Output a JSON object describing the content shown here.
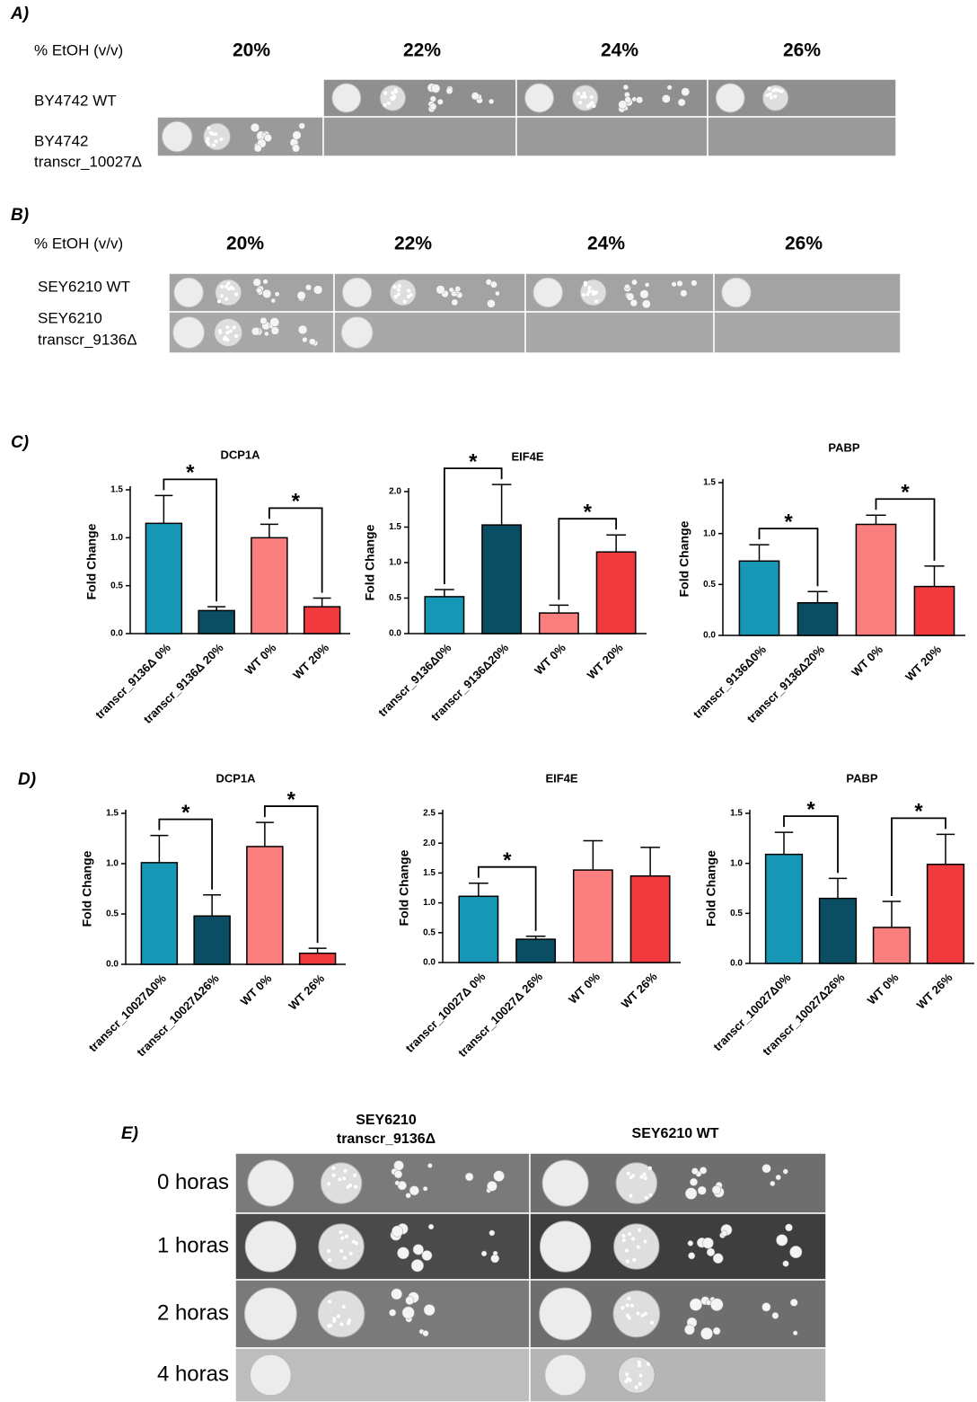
{
  "panel_a": {
    "label": "A)",
    "header": "% EtOH (v/v)",
    "concentrations": [
      "20%",
      "22%",
      "24%",
      "26%"
    ],
    "strains": [
      [
        "BY4742 WT"
      ],
      [
        "BY4742",
        "transcr_10027Δ"
      ]
    ]
  },
  "panel_b": {
    "label": "B)",
    "header": "% EtOH (v/v)",
    "concentrations": [
      "20%",
      "22%",
      "24%",
      "26%"
    ],
    "strains": [
      [
        "SEY6210  WT"
      ],
      [
        "SEY6210",
        "transcr_9136Δ"
      ]
    ]
  },
  "panel_c": {
    "label": "C)"
  },
  "panel_d": {
    "label": "D)"
  },
  "panel_e": {
    "label": "E)",
    "strains": [
      [
        "SEY6210",
        "transcr_9136Δ"
      ],
      [
        "SEY6210  WT"
      ]
    ],
    "times": [
      "0 horas",
      "1 horas",
      "2 horas",
      "4 horas"
    ]
  },
  "chart_data": [
    {
      "type": "bar",
      "title": "DCP1A",
      "ylabel": "Fold Change",
      "categories": [
        "transcr_9136Δ 0%",
        "transcr_9136Δ 20%",
        "WT 0%",
        "WT 20%"
      ],
      "values": [
        1.15,
        0.24,
        1.0,
        0.28
      ],
      "errors": [
        0.29,
        0.04,
        0.14,
        0.09
      ],
      "colors": [
        "#1597b5",
        "#0b4d62",
        "#fb7e7e",
        "#f13a3d"
      ],
      "ylim": [
        0,
        1.5
      ],
      "yticks": [
        {
          "value": 0,
          "label": "0.0"
        },
        {
          "value": 0.5,
          "label": "0.5"
        },
        {
          "value": 1,
          "label": "1.0"
        },
        {
          "value": 1.5,
          "label": "1.5"
        }
      ],
      "significance": [
        {
          "from": 0,
          "to": 1,
          "label": "*"
        },
        {
          "from": 2,
          "to": 3,
          "label": "*"
        }
      ]
    },
    {
      "type": "bar",
      "title": "EIF4E",
      "ylabel": "Fold Change",
      "categories": [
        "transcr_9136Δ0%",
        "transcr_9136Δ20%",
        "WT 0%",
        "WT 20%"
      ],
      "values": [
        0.52,
        1.53,
        0.29,
        1.15
      ],
      "errors": [
        0.1,
        0.57,
        0.11,
        0.24
      ],
      "colors": [
        "#1597b5",
        "#0b4d62",
        "#fb7e7e",
        "#f13a3d"
      ],
      "ylim": [
        0,
        2
      ],
      "yticks": [
        {
          "value": 0,
          "label": "0.0"
        },
        {
          "value": 0.5,
          "label": "0.5"
        },
        {
          "value": 1,
          "label": "1.0"
        },
        {
          "value": 1.5,
          "label": "1.5"
        },
        {
          "value": 2,
          "label": "2.0"
        }
      ],
      "significance": [
        {
          "from": 0,
          "to": 1,
          "label": "*"
        },
        {
          "from": 2,
          "to": 3,
          "label": "*"
        }
      ]
    },
    {
      "type": "bar",
      "title": "PABP",
      "ylabel": "Fold Change",
      "categories": [
        "transcr_9136Δ0%",
        "transcr_9136Δ20%",
        "WT 0%",
        "WT 20%"
      ],
      "values": [
        0.73,
        0.32,
        1.09,
        0.48
      ],
      "errors": [
        0.16,
        0.11,
        0.09,
        0.2
      ],
      "colors": [
        "#1597b5",
        "#0b4d62",
        "#fb7e7e",
        "#f13a3d"
      ],
      "ylim": [
        0,
        1.5
      ],
      "yticks": [
        {
          "value": 0,
          "label": "0.0"
        },
        {
          "value": 0.5,
          "label": "0.5"
        },
        {
          "value": 1,
          "label": "1.0"
        },
        {
          "value": 1.5,
          "label": "1.5"
        }
      ],
      "significance": [
        {
          "from": 0,
          "to": 1,
          "label": "*"
        },
        {
          "from": 2,
          "to": 3,
          "label": "*"
        }
      ]
    },
    {
      "type": "bar",
      "title": "DCP1A",
      "ylabel": "Fold Change",
      "categories": [
        "transcr_10027Δ0%",
        "transcr_10027Δ26%",
        "WT 0%",
        "WT 26%"
      ],
      "values": [
        1.01,
        0.48,
        1.17,
        0.11
      ],
      "errors": [
        0.27,
        0.21,
        0.24,
        0.05
      ],
      "colors": [
        "#1597b5",
        "#0b4d62",
        "#fb7e7e",
        "#f13a3d"
      ],
      "ylim": [
        0,
        1.5
      ],
      "yticks": [
        {
          "value": 0,
          "label": "0.0"
        },
        {
          "value": 0.5,
          "label": "0.5"
        },
        {
          "value": 1,
          "label": "1.0"
        },
        {
          "value": 1.5,
          "label": "1.5"
        }
      ],
      "significance": [
        {
          "from": 0,
          "to": 1,
          "label": "*"
        },
        {
          "from": 2,
          "to": 3,
          "label": "*"
        }
      ]
    },
    {
      "type": "bar",
      "title": "EIF4E",
      "ylabel": "Fold Change",
      "categories": [
        "transcr_10027Δ 0%",
        "transcr_10027Δ 26%",
        "WT 0%",
        "WT 26%"
      ],
      "values": [
        1.11,
        0.39,
        1.55,
        1.45
      ],
      "errors": [
        0.22,
        0.05,
        0.49,
        0.48
      ],
      "colors": [
        "#1597b5",
        "#0b4d62",
        "#fb7e7e",
        "#f13a3d"
      ],
      "ylim": [
        0,
        2.5
      ],
      "yticks": [
        {
          "value": 0,
          "label": "0.0"
        },
        {
          "value": 0.5,
          "label": "0.5"
        },
        {
          "value": 1,
          "label": "1.0"
        },
        {
          "value": 1.5,
          "label": "1.5"
        },
        {
          "value": 2,
          "label": "2.0"
        },
        {
          "value": 2.5,
          "label": "2.5"
        }
      ],
      "significance": [
        {
          "from": 0,
          "to": 1,
          "label": "*"
        }
      ]
    },
    {
      "type": "bar",
      "title": "PABP",
      "ylabel": "Fold Change",
      "categories": [
        "transcr_10027Δ0%",
        "transcr_10027Δ26%",
        "WT 0%",
        "WT 26%"
      ],
      "values": [
        1.09,
        0.65,
        0.36,
        0.99
      ],
      "errors": [
        0.22,
        0.2,
        0.26,
        0.3
      ],
      "colors": [
        "#1597b5",
        "#0b4d62",
        "#fb7e7e",
        "#f13a3d"
      ],
      "ylim": [
        0,
        1.5
      ],
      "yticks": [
        {
          "value": 0,
          "label": "0.0"
        },
        {
          "value": 0.5,
          "label": "0.5"
        },
        {
          "value": 1,
          "label": "1.0"
        },
        {
          "value": 1.5,
          "label": "1.5"
        }
      ],
      "significance": [
        {
          "from": 0,
          "to": 1,
          "label": "*"
        },
        {
          "from": 2,
          "to": 3,
          "label": "*"
        }
      ]
    }
  ]
}
